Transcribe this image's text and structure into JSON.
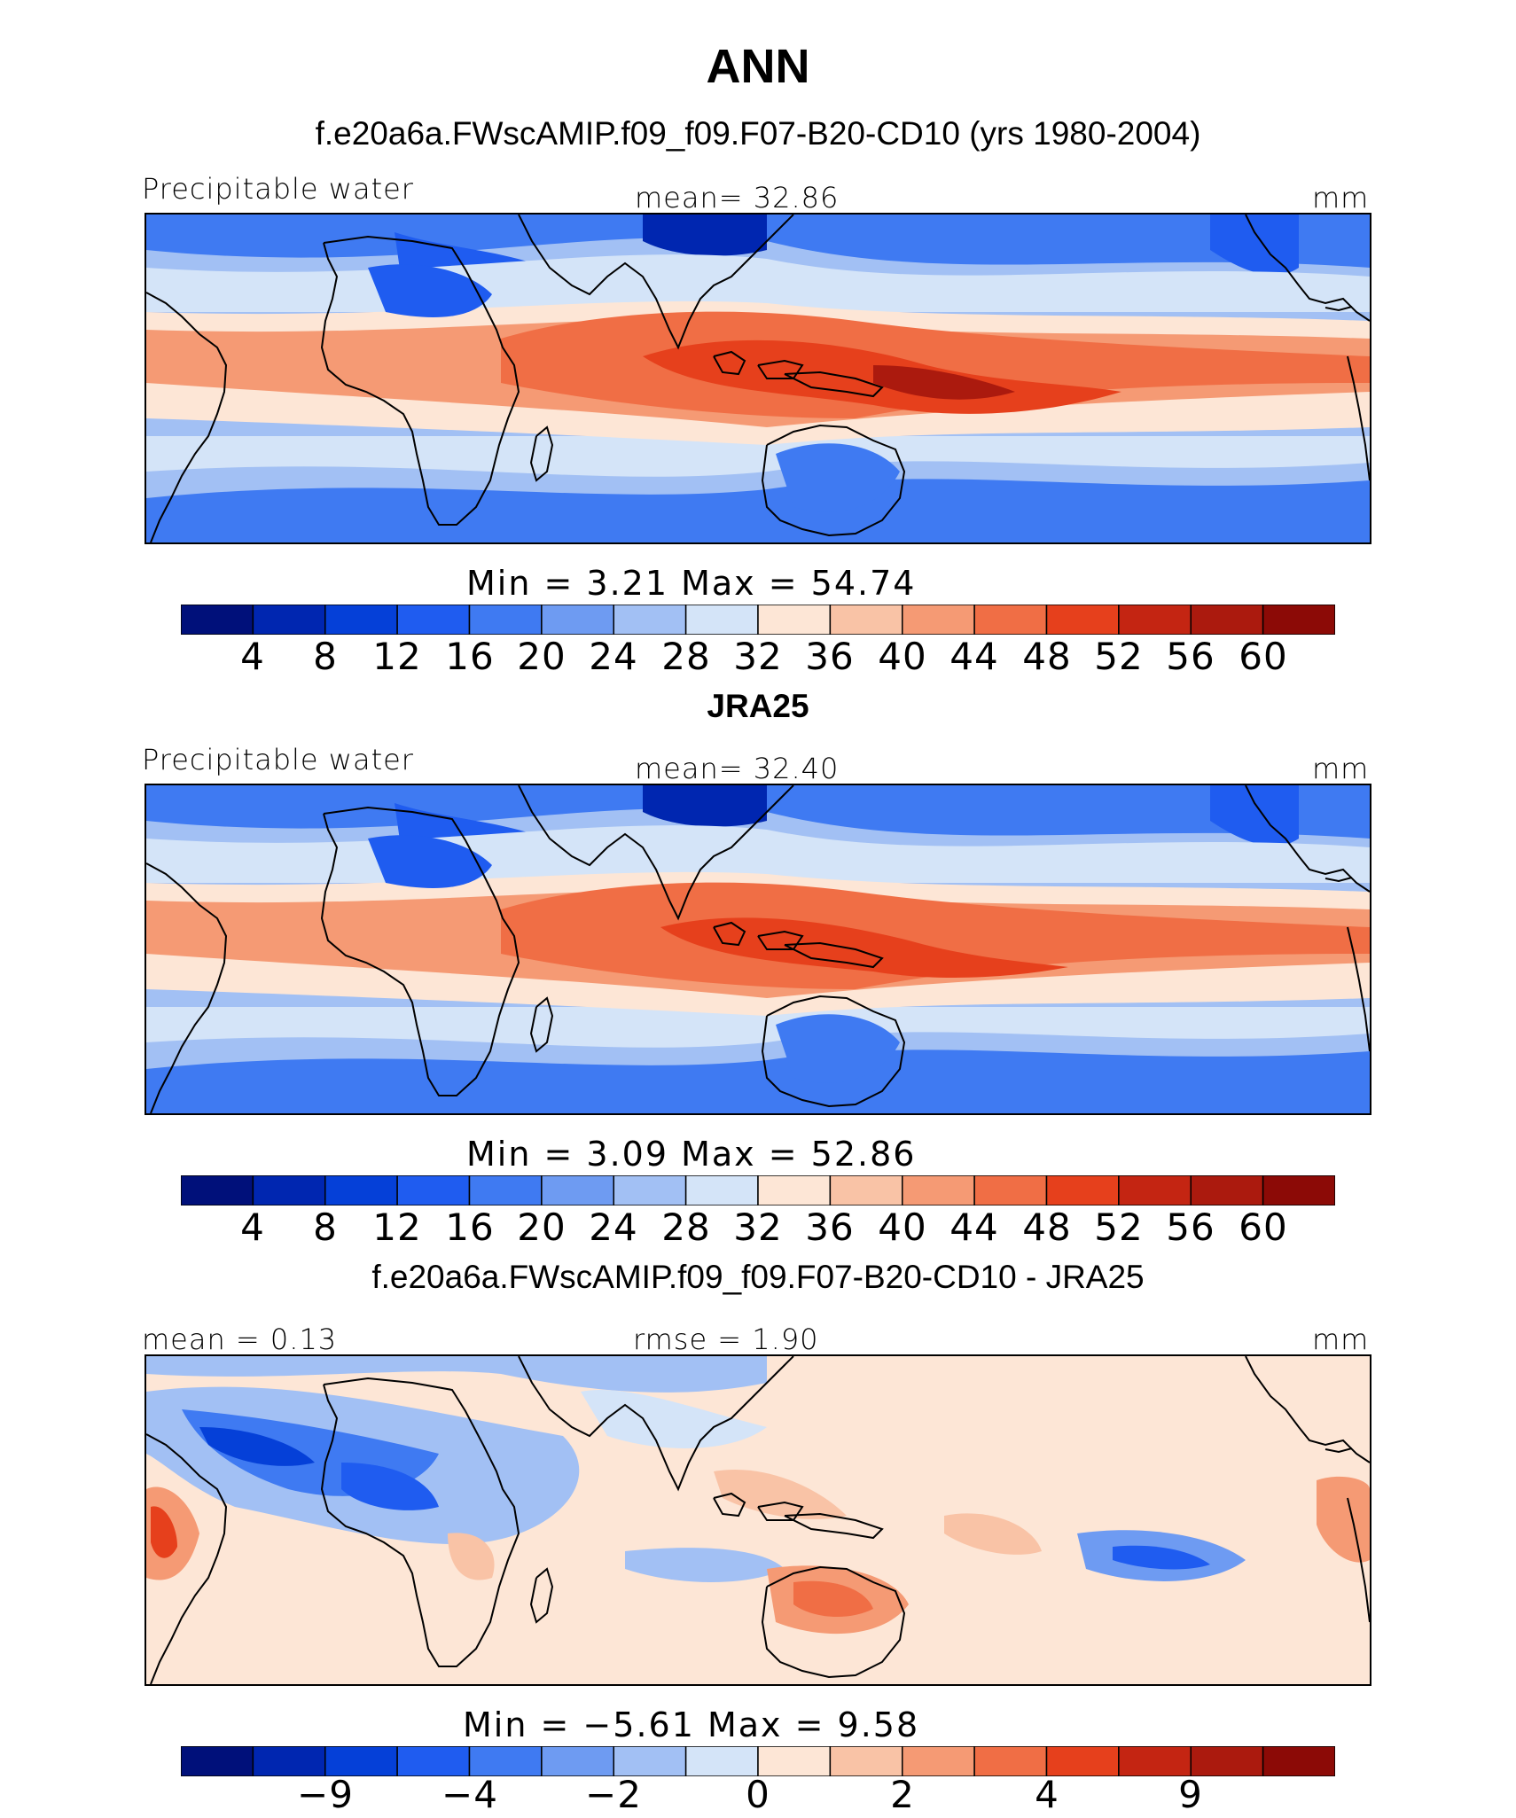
{
  "page_title": "ANN",
  "panels": [
    {
      "id": "model",
      "heading": "f.e20a6a.FWscAMIP.f09_f09.F07-B20-CD10 (yrs 1980-2004)",
      "left_label": "Precipitable water",
      "center_label": "mean=   32.86",
      "units": "mm",
      "stats_label": "Min  =     3.21  Max  =    54.74",
      "colorbar_ticks": [
        "4",
        "8",
        "12",
        "16",
        "20",
        "24",
        "28",
        "32",
        "36",
        "40",
        "44",
        "48",
        "52",
        "56",
        "60"
      ],
      "field": "abs"
    },
    {
      "id": "obs",
      "heading": "JRA25",
      "left_label": "Precipitable water",
      "center_label": "mean=   32.40",
      "units": "mm",
      "stats_label": "Min  =     3.09  Max  =    52.86",
      "colorbar_ticks": [
        "4",
        "8",
        "12",
        "16",
        "20",
        "24",
        "28",
        "32",
        "36",
        "40",
        "44",
        "48",
        "52",
        "56",
        "60"
      ],
      "field": "abs"
    },
    {
      "id": "diff",
      "heading": "f.e20a6a.FWscAMIP.f09_f09.F07-B20-CD10 - JRA25",
      "left_label": "mean =    0.13",
      "center_label": "rmse  =    1.90",
      "units": "mm",
      "stats_label": "Min  =   −5.61  Max  =    9.58",
      "colorbar_ticks": [
        "−9",
        "−4",
        "−2",
        "0",
        "2",
        "4",
        "9"
      ],
      "field": "diff"
    }
  ],
  "colors": {
    "palette": [
      "#00107a",
      "#0026b0",
      "#0540d8",
      "#1f5cf0",
      "#3f7af2",
      "#6e9bf2",
      "#a2c0f4",
      "#d4e4f8",
      "#fde6d6",
      "#f9c3a6",
      "#f59a74",
      "#f06e45",
      "#e6401c",
      "#c42512",
      "#8c0a06"
    ],
    "abs_palette": [
      "#00107a",
      "#0026b0",
      "#0540d8",
      "#1f5cf0",
      "#3f7af2",
      "#6e9bf2",
      "#a2c0f4",
      "#d4e4f8",
      "#fde6d6",
      "#f9c3a6",
      "#f59a74",
      "#f06e45",
      "#e6401c",
      "#c42512",
      "#ab1a0e",
      "#8c0a06"
    ],
    "coastline": "#000000"
  }
}
